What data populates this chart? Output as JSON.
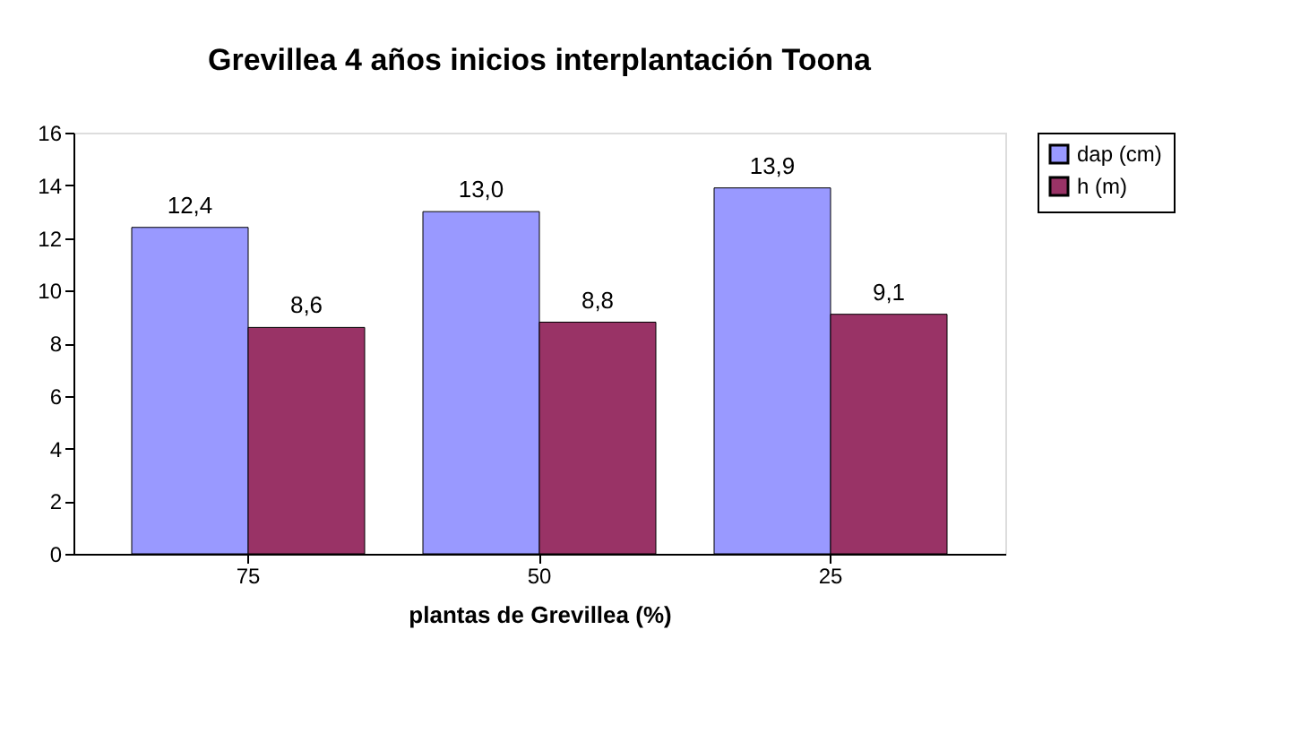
{
  "chart_data": {
    "type": "bar",
    "title": "Grevillea 4 años inicios interplantación Toona",
    "xlabel": "plantas de Grevillea (%)",
    "categories": [
      "75",
      "50",
      "25"
    ],
    "series": [
      {
        "name": "dap (cm)",
        "color": "#9999ff",
        "values": [
          12.4,
          13.0,
          13.9
        ],
        "value_labels": [
          "12,4",
          "13,0",
          "13,9"
        ]
      },
      {
        "name": "h (m)",
        "color": "#993366",
        "values": [
          8.6,
          8.8,
          9.1
        ],
        "value_labels": [
          "8,6",
          "8,8",
          "9,1"
        ]
      }
    ],
    "ylim": [
      0,
      16
    ],
    "yticks": [
      0,
      2,
      4,
      6,
      8,
      10,
      12,
      14,
      16
    ],
    "grid": false,
    "legend": "right"
  }
}
